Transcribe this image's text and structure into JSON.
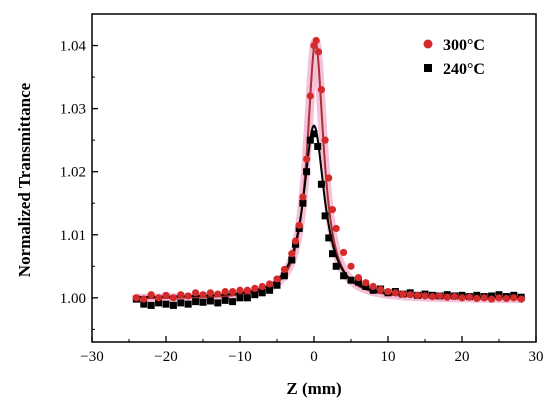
{
  "chart_data": {
    "type": "scatter",
    "xlabel": "Z (mm)",
    "ylabel": "Normalized Transmittance",
    "xlim": [
      -30,
      30
    ],
    "ylim": [
      0.993,
      1.045
    ],
    "x_ticks": [
      -30,
      -20,
      -10,
      0,
      10,
      20,
      30
    ],
    "y_ticks": [
      1.0,
      1.01,
      1.02,
      1.03,
      1.04
    ],
    "y_tick_labels": [
      "1.00",
      "1.01",
      "1.02",
      "1.03",
      "1.04"
    ],
    "legend_position": "top-right",
    "grid": false,
    "series": [
      {
        "name": "300°C",
        "marker": "circle",
        "color": "#d42a2a",
        "fit_color": "#a83232",
        "glow_color": "#f3b9d6",
        "points": [
          {
            "x": -24,
            "y": 1.0
          },
          {
            "x": -23,
            "y": 0.9998
          },
          {
            "x": -22,
            "y": 1.0005
          },
          {
            "x": -21,
            "y": 1.0
          },
          {
            "x": -20,
            "y": 1.0004
          },
          {
            "x": -19,
            "y": 1.0
          },
          {
            "x": -18,
            "y": 1.0005
          },
          {
            "x": -17,
            "y": 1.0003
          },
          {
            "x": -16,
            "y": 1.0008
          },
          {
            "x": -15,
            "y": 1.0005
          },
          {
            "x": -14,
            "y": 1.0008
          },
          {
            "x": -13,
            "y": 1.0006
          },
          {
            "x": -12,
            "y": 1.001
          },
          {
            "x": -11,
            "y": 1.001
          },
          {
            "x": -10,
            "y": 1.0012
          },
          {
            "x": -9,
            "y": 1.0012
          },
          {
            "x": -8,
            "y": 1.0015
          },
          {
            "x": -7,
            "y": 1.0018
          },
          {
            "x": -6,
            "y": 1.0022
          },
          {
            "x": -5,
            "y": 1.003
          },
          {
            "x": -4,
            "y": 1.0045
          },
          {
            "x": -3,
            "y": 1.007
          },
          {
            "x": -2.5,
            "y": 1.009
          },
          {
            "x": -2,
            "y": 1.0115
          },
          {
            "x": -1.5,
            "y": 1.016
          },
          {
            "x": -1,
            "y": 1.022
          },
          {
            "x": -0.5,
            "y": 1.032
          },
          {
            "x": 0,
            "y": 1.04
          },
          {
            "x": 0.3,
            "y": 1.0408
          },
          {
            "x": 0.6,
            "y": 1.039
          },
          {
            "x": 1,
            "y": 1.033
          },
          {
            "x": 1.5,
            "y": 1.025
          },
          {
            "x": 2,
            "y": 1.019
          },
          {
            "x": 2.5,
            "y": 1.014
          },
          {
            "x": 3,
            "y": 1.011
          },
          {
            "x": 4,
            "y": 1.0072
          },
          {
            "x": 5,
            "y": 1.005
          },
          {
            "x": 6,
            "y": 1.0032
          },
          {
            "x": 7,
            "y": 1.0024
          },
          {
            "x": 8,
            "y": 1.0018
          },
          {
            "x": 9,
            "y": 1.0013
          },
          {
            "x": 10,
            "y": 1.001
          },
          {
            "x": 11,
            "y": 1.0008
          },
          {
            "x": 12,
            "y": 1.0006
          },
          {
            "x": 13,
            "y": 1.0005
          },
          {
            "x": 14,
            "y": 1.0004
          },
          {
            "x": 15,
            "y": 1.0003
          },
          {
            "x": 16,
            "y": 1.0002
          },
          {
            "x": 17,
            "y": 1.0003
          },
          {
            "x": 18,
            "y": 1.0001
          },
          {
            "x": 19,
            "y": 1.0002
          },
          {
            "x": 20,
            "y": 1.0
          },
          {
            "x": 21,
            "y": 1.0001
          },
          {
            "x": 22,
            "y": 0.9999
          },
          {
            "x": 23,
            "y": 1.0
          },
          {
            "x": 24,
            "y": 0.9998
          },
          {
            "x": 25,
            "y": 1.0
          },
          {
            "x": 26,
            "y": 0.9999
          },
          {
            "x": 27,
            "y": 1.0
          },
          {
            "x": 28,
            "y": 0.9998
          }
        ],
        "fit": {
          "amplitude": 0.0408,
          "z0": 0.2,
          "half_width": 1.35,
          "baseline": 0.9998
        }
      },
      {
        "name": "240°C",
        "marker": "square",
        "color": "#000000",
        "fit_color": "#000000",
        "points": [
          {
            "x": -24,
            "y": 0.9998
          },
          {
            "x": -23,
            "y": 0.999
          },
          {
            "x": -22,
            "y": 0.9988
          },
          {
            "x": -21,
            "y": 0.9992
          },
          {
            "x": -20,
            "y": 0.999
          },
          {
            "x": -19,
            "y": 0.9988
          },
          {
            "x": -18,
            "y": 0.9992
          },
          {
            "x": -17,
            "y": 0.999
          },
          {
            "x": -16,
            "y": 0.9994
          },
          {
            "x": -15,
            "y": 0.9993
          },
          {
            "x": -14,
            "y": 0.9995
          },
          {
            "x": -13,
            "y": 0.9992
          },
          {
            "x": -12,
            "y": 0.9996
          },
          {
            "x": -11,
            "y": 0.9994
          },
          {
            "x": -10,
            "y": 1.0
          },
          {
            "x": -9,
            "y": 1.0
          },
          {
            "x": -8,
            "y": 1.0005
          },
          {
            "x": -7,
            "y": 1.0008
          },
          {
            "x": -6,
            "y": 1.0012
          },
          {
            "x": -5,
            "y": 1.002
          },
          {
            "x": -4,
            "y": 1.0035
          },
          {
            "x": -3,
            "y": 1.006
          },
          {
            "x": -2.5,
            "y": 1.0085
          },
          {
            "x": -2,
            "y": 1.011
          },
          {
            "x": -1.5,
            "y": 1.015
          },
          {
            "x": -1,
            "y": 1.02
          },
          {
            "x": -0.5,
            "y": 1.025
          },
          {
            "x": 0,
            "y": 1.026
          },
          {
            "x": 0.5,
            "y": 1.024
          },
          {
            "x": 1,
            "y": 1.018
          },
          {
            "x": 1.5,
            "y": 1.013
          },
          {
            "x": 2,
            "y": 1.0095
          },
          {
            "x": 2.5,
            "y": 1.007
          },
          {
            "x": 3,
            "y": 1.005
          },
          {
            "x": 4,
            "y": 1.0035
          },
          {
            "x": 5,
            "y": 1.0028
          },
          {
            "x": 6,
            "y": 1.0025
          },
          {
            "x": 7,
            "y": 1.0018
          },
          {
            "x": 8,
            "y": 1.0012
          },
          {
            "x": 9,
            "y": 1.0014
          },
          {
            "x": 10,
            "y": 1.0008
          },
          {
            "x": 11,
            "y": 1.001
          },
          {
            "x": 12,
            "y": 1.0006
          },
          {
            "x": 13,
            "y": 1.0008
          },
          {
            "x": 14,
            "y": 1.0004
          },
          {
            "x": 15,
            "y": 1.0006
          },
          {
            "x": 16,
            "y": 1.0004
          },
          {
            "x": 17,
            "y": 1.0003
          },
          {
            "x": 18,
            "y": 1.0005
          },
          {
            "x": 19,
            "y": 1.0003
          },
          {
            "x": 20,
            "y": 1.0004
          },
          {
            "x": 21,
            "y": 1.0002
          },
          {
            "x": 22,
            "y": 1.0004
          },
          {
            "x": 23,
            "y": 1.0002
          },
          {
            "x": 24,
            "y": 1.0003
          },
          {
            "x": 25,
            "y": 1.0005
          },
          {
            "x": 26,
            "y": 1.0002
          },
          {
            "x": 27,
            "y": 1.0004
          },
          {
            "x": 28,
            "y": 1.0001
          }
        ],
        "fit": {
          "amplitude": 0.0273,
          "z0": 0.0,
          "half_width": 1.7,
          "baseline": 1.0
        }
      }
    ]
  }
}
